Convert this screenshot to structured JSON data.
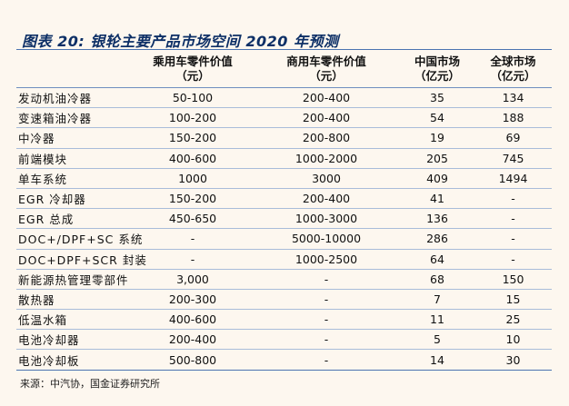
{
  "title": "图表 20:  银轮主要产品市场空间 2020 年预测",
  "columns": [
    {
      "line1": "",
      "line2": ""
    },
    {
      "line1": "乘用车零件价值",
      "line2": "（元）"
    },
    {
      "line1": "商用车零件价值",
      "line2": "（元）"
    },
    {
      "line1": "中国市场",
      "line2": "（亿元）"
    },
    {
      "line1": "全球市场",
      "line2": "（亿元）"
    }
  ],
  "rows": [
    [
      "发动机油冷器",
      "50-100",
      "200-400",
      "35",
      "134"
    ],
    [
      "变速箱油冷器",
      "100-200",
      "200-400",
      "54",
      "188"
    ],
    [
      "中冷器",
      "150-200",
      "200-800",
      "19",
      "69"
    ],
    [
      "前端模块",
      "400-600",
      "1000-2000",
      "205",
      "745"
    ],
    [
      "单车系统",
      "1000",
      "3000",
      "409",
      "1494"
    ],
    [
      "EGR 冷却器",
      "150-200",
      "200-400",
      "41",
      "-"
    ],
    [
      "EGR 总成",
      "450-650",
      "1000-3000",
      "136",
      "-"
    ],
    [
      "DOC+/DPF+SC 系统",
      "-",
      "5000-10000",
      "286",
      "-"
    ],
    [
      "DOC+DPF+SCR 封装",
      "-",
      "1000-2500",
      "64",
      "-"
    ],
    [
      "新能源热管理零部件",
      "3,000",
      "-",
      "68",
      "150"
    ],
    [
      "散热器",
      "200-300",
      "-",
      "7",
      "15"
    ],
    [
      "低温水箱",
      "400-600",
      "-",
      "11",
      "25"
    ],
    [
      "电池冷却器",
      "200-400",
      "-",
      "5",
      "10"
    ],
    [
      "电池冷却板",
      "500-800",
      "-",
      "14",
      "30"
    ]
  ],
  "source": "来源：中汽协，国金证券研究所"
}
